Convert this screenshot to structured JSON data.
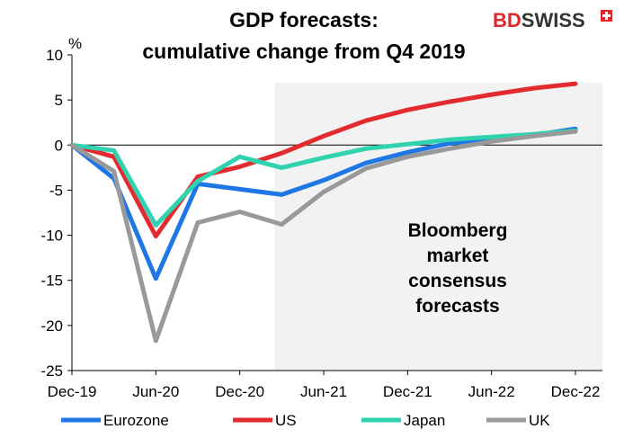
{
  "logo": {
    "text_bd": "BD",
    "text_swiss": "SWISS",
    "color": "#e1262c"
  },
  "chart_data": {
    "type": "line",
    "title": [
      "GDP forecasts:",
      "cumulative change from Q4 2019"
    ],
    "ylabel": "%",
    "ylim": [
      -25,
      10
    ],
    "yticks": [
      10,
      5,
      0,
      -5,
      -10,
      -15,
      -20,
      -25
    ],
    "xticks": [
      "Dec-19",
      "Jun-20",
      "Dec-20",
      "Jun-21",
      "Dec-21",
      "Jun-22",
      "Dec-22"
    ],
    "x": [
      "Q4 2019",
      "Q1 2020",
      "Q2 2020",
      "Q3 2020",
      "Q4 2020",
      "Q1 2021",
      "Q2 2021",
      "Q3 2021",
      "Q4 2021",
      "Q1 2022",
      "Q2 2022",
      "Q3 2022",
      "Q4 2022"
    ],
    "forecast_start": "Q1 2021",
    "forecast_shade_color": "#f2f2f2",
    "annotation": [
      "Bloomberg",
      "market",
      "consensus",
      "forecasts"
    ],
    "legend_position": "bottom",
    "series": [
      {
        "name": "Eurozone",
        "color": "#1f77e6",
        "values": [
          0,
          -3.7,
          -14.8,
          -4.3,
          -4.9,
          -5.5,
          -3.9,
          -2.0,
          -0.8,
          0.2,
          0.6,
          1.1,
          1.8
        ]
      },
      {
        "name": "US",
        "color": "#e32a2e",
        "values": [
          0,
          -1.3,
          -10.1,
          -3.5,
          -2.4,
          -0.9,
          1.0,
          2.7,
          3.9,
          4.8,
          5.6,
          6.3,
          6.8
        ]
      },
      {
        "name": "Japan",
        "color": "#2fd3b0",
        "values": [
          0,
          -0.6,
          -8.9,
          -4.0,
          -1.3,
          -2.5,
          -1.4,
          -0.4,
          0.1,
          0.6,
          0.9,
          1.2,
          1.6
        ]
      },
      {
        "name": "UK",
        "color": "#999999",
        "values": [
          0,
          -2.9,
          -21.7,
          -8.6,
          -7.4,
          -8.8,
          -5.2,
          -2.6,
          -1.3,
          -0.4,
          0.4,
          1.0,
          1.5
        ]
      }
    ]
  }
}
